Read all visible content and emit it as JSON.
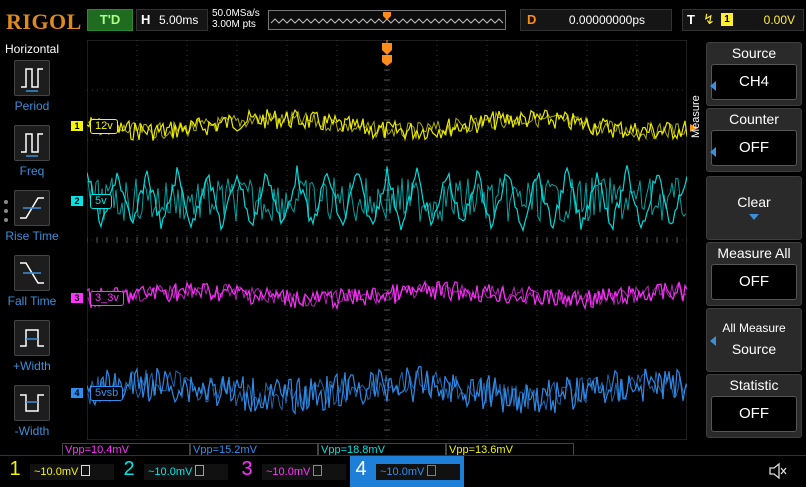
{
  "topbar": {
    "brand": "RIGOL",
    "run_status": "T'D",
    "horizontal_letter": "H",
    "timebase": "5.00ms",
    "sample_rate": "50.0MSa/s",
    "memory_depth": "3.00M pts",
    "delay_letter": "D",
    "delay_value": "0.00000000ps",
    "trigger_letter": "T",
    "trigger_source": "1",
    "trigger_level": "0.00V"
  },
  "left_panel": {
    "title": "Horizontal",
    "functions": [
      {
        "label": "Period",
        "icon": "period-icon"
      },
      {
        "label": "Freq",
        "icon": "freq-icon"
      },
      {
        "label": "Rise Time",
        "icon": "rise-time-icon"
      },
      {
        "label": "Fall Time",
        "icon": "fall-time-icon"
      },
      {
        "label": "+Width",
        "icon": "positive-width-icon"
      },
      {
        "label": "-Width",
        "icon": "negative-width-icon"
      }
    ]
  },
  "channel_labels": [
    {
      "num": "1",
      "label": "12v",
      "color": "#f5f500"
    },
    {
      "num": "2",
      "label": "5v",
      "color": "#00e5e5"
    },
    {
      "num": "3",
      "label": "3_3v",
      "color": "#ff33ff"
    },
    {
      "num": "4",
      "label": "5vsb",
      "color": "#2f8ff0"
    }
  ],
  "measurements": [
    {
      "text": "Vpp=10.4mV",
      "color": "#ff33ff"
    },
    {
      "text": "Vpp=15.2mV",
      "color": "#2f8ff0"
    },
    {
      "text": "Vpp=18.8mV",
      "color": "#00e5e5"
    },
    {
      "text": "Vpp=13.6mV",
      "color": "#f5f500"
    }
  ],
  "channels": [
    {
      "num": "1",
      "scale": "~10.0mV",
      "color": "#f5f500"
    },
    {
      "num": "2",
      "scale": "~10.0mV",
      "color": "#00e5e5"
    },
    {
      "num": "3",
      "scale": "~10.0mV",
      "color": "#ff33ff"
    },
    {
      "num": "4",
      "scale": "~10.0mV",
      "color": "#2f8ff0"
    }
  ],
  "menu": {
    "title": "Measure",
    "items": [
      {
        "label": "Source",
        "value": "CH4"
      },
      {
        "label": "Counter",
        "value": "OFF"
      },
      {
        "label": "Clear",
        "value": ""
      },
      {
        "label": "Measure All",
        "value": "OFF"
      },
      {
        "label": "All Measure",
        "value": "Source"
      },
      {
        "label": "Statistic",
        "value": "OFF"
      }
    ]
  }
}
